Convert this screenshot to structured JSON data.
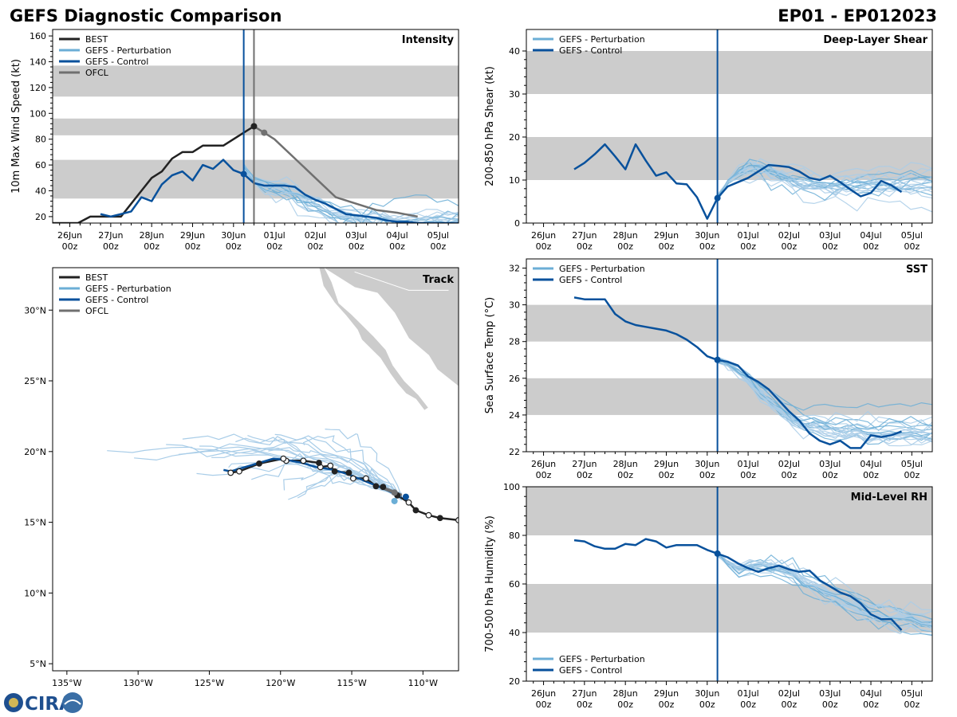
{
  "header": {
    "title": "GEFS Diagnostic Comparison",
    "storm_id": "EP01 - EP012023"
  },
  "logo": {
    "text": "CIRA"
  },
  "colors": {
    "best": "#222222",
    "perturbation": "#6baed6",
    "perturbation_light": "#a9cde8",
    "control": "#08519c",
    "ofcl": "#707070",
    "band": "#cccccc",
    "land": "#cccccc"
  },
  "time_axis": {
    "ticks": [
      {
        "t": 0,
        "date": "26Jun",
        "hour": "00z"
      },
      {
        "t": 1,
        "date": "27Jun",
        "hour": "00z"
      },
      {
        "t": 2,
        "date": "28Jun",
        "hour": "00z"
      },
      {
        "t": 3,
        "date": "29Jun",
        "hour": "00z"
      },
      {
        "t": 4,
        "date": "30Jun",
        "hour": "00z"
      },
      {
        "t": 5,
        "date": "01Jul",
        "hour": "00z"
      },
      {
        "t": 6,
        "date": "02Jul",
        "hour": "00z"
      },
      {
        "t": 7,
        "date": "03Jul",
        "hour": "00z"
      },
      {
        "t": 8,
        "date": "04Jul",
        "hour": "00z"
      },
      {
        "t": 9,
        "date": "05Jul",
        "hour": "00z"
      }
    ],
    "range": [
      -0.42,
      9.5
    ],
    "init_time": 4.25,
    "ofcl_init_time": 4.5
  },
  "chart_data": [
    {
      "id": "intensity",
      "type": "line",
      "title": "Intensity",
      "ylabel": "10m Max Wind Speed (kt)",
      "ylim": [
        15,
        165
      ],
      "yticks": [
        20,
        40,
        60,
        80,
        100,
        120,
        140,
        160
      ],
      "bands": [
        [
          34,
          64
        ],
        [
          83,
          96
        ],
        [
          113,
          137
        ]
      ],
      "legend": [
        "BEST",
        "GEFS - Perturbation",
        "GEFS - Control",
        "OFCL"
      ],
      "series": [
        {
          "name": "BEST",
          "t": [
            -0.42,
            0.2,
            0.5,
            0.75,
            1.0,
            1.25,
            1.5,
            1.75,
            2.0,
            2.25,
            2.5,
            2.75,
            3.0,
            3.25,
            3.5,
            3.75,
            4.0,
            4.25,
            4.5
          ],
          "values": [
            15,
            15,
            20,
            20,
            20,
            20,
            30,
            40,
            50,
            55,
            65,
            70,
            70,
            75,
            75,
            75,
            80,
            85,
            90
          ]
        },
        {
          "name": "GEFS - Control",
          "t": [
            0.75,
            1.0,
            1.25,
            1.5,
            1.75,
            2.0,
            2.25,
            2.5,
            2.75,
            3.0,
            3.25,
            3.5,
            3.75,
            4.0,
            4.25,
            4.5,
            4.75,
            5.0,
            5.25,
            5.5,
            5.75,
            6.0,
            6.25,
            6.5,
            6.75,
            7.0,
            7.25,
            7.5,
            7.75,
            8.0,
            8.25,
            8.5,
            8.75,
            9.0,
            9.5
          ],
          "values": [
            22,
            20,
            22,
            24,
            35,
            32,
            45,
            52,
            55,
            48,
            60,
            57,
            64,
            56,
            53,
            46,
            44,
            44,
            44,
            43,
            37,
            33,
            30,
            26,
            22,
            21,
            20,
            19,
            17,
            16,
            16,
            15,
            15,
            15,
            15
          ]
        },
        {
          "name": "OFCL",
          "t": [
            4.5,
            4.75,
            5.0,
            5.5,
            6.0,
            6.5,
            7.0,
            7.5,
            8.0,
            8.5
          ],
          "values": [
            90,
            85,
            80,
            65,
            50,
            35,
            30,
            25,
            23,
            20
          ]
        }
      ],
      "perturbation_base": [
        58,
        48,
        44,
        43,
        42,
        38,
        33,
        30,
        25,
        22,
        20,
        19,
        18,
        17,
        16,
        16,
        16,
        16,
        16,
        16,
        16
      ]
    },
    {
      "id": "shear",
      "type": "line",
      "title": "Deep-Layer Shear",
      "ylabel": "200-850 hPa Shear (kt)",
      "ylim": [
        0,
        45
      ],
      "yticks": [
        0,
        10,
        20,
        30,
        40
      ],
      "bands": [
        [
          10,
          20
        ],
        [
          30,
          40
        ]
      ],
      "legend": [
        "GEFS - Perturbation",
        "GEFS - Control"
      ],
      "series": [
        {
          "name": "GEFS - Control",
          "t": [
            0.75,
            1.0,
            1.25,
            1.5,
            1.75,
            2.0,
            2.25,
            2.5,
            2.75,
            3.0,
            3.25,
            3.5,
            3.75,
            4.0,
            4.25,
            4.5,
            4.75,
            5.0,
            5.25,
            5.5,
            5.75,
            6.0,
            6.25,
            6.5,
            6.75,
            7.0,
            7.25,
            7.5,
            7.75,
            8.0,
            8.25,
            8.5,
            8.75
          ],
          "values": [
            12.5,
            14,
            16,
            18.3,
            15.5,
            12.5,
            18.3,
            14.5,
            11,
            11.8,
            9.2,
            9,
            6,
            1,
            5.8,
            8.5,
            9.5,
            10.5,
            12,
            13.5,
            13.3,
            13,
            12,
            10.5,
            10,
            11,
            9.5,
            7.8,
            6.2,
            7,
            9.8,
            8.8,
            7.2
          ]
        }
      ],
      "perturbation_base": [
        5.8,
        10,
        12,
        13,
        13,
        12,
        11,
        10,
        9.5,
        9,
        8.5,
        8.5,
        9,
        9,
        9,
        9,
        9,
        9,
        9,
        9,
        9
      ]
    },
    {
      "id": "sst",
      "type": "line",
      "title": "SST",
      "ylabel": "Sea Surface Temp (°C)",
      "ylim": [
        22,
        32.5
      ],
      "yticks": [
        22,
        24,
        26,
        28,
        30,
        32
      ],
      "bands": [
        [
          24,
          26
        ],
        [
          28,
          30
        ]
      ],
      "legend": [
        "GEFS - Perturbation",
        "GEFS - Control"
      ],
      "series": [
        {
          "name": "GEFS - Control",
          "t": [
            0.75,
            1.0,
            1.25,
            1.5,
            1.75,
            2.0,
            2.25,
            2.5,
            2.75,
            3.0,
            3.25,
            3.5,
            3.75,
            4.0,
            4.25,
            4.5,
            4.75,
            5.0,
            5.25,
            5.5,
            5.75,
            6.0,
            6.25,
            6.5,
            6.75,
            7.0,
            7.25,
            7.5,
            7.75,
            8.0,
            8.25,
            8.5,
            8.75
          ],
          "values": [
            30.4,
            30.3,
            30.3,
            30.3,
            29.5,
            29.1,
            28.9,
            28.8,
            28.7,
            28.6,
            28.4,
            28.1,
            27.7,
            27.2,
            27.0,
            26.9,
            26.7,
            26.1,
            25.8,
            25.4,
            24.8,
            24.2,
            23.7,
            23.0,
            22.6,
            22.4,
            22.6,
            22.2,
            22.2,
            22.9,
            22.8,
            22.9,
            23.1
          ]
        }
      ],
      "perturbation_base": [
        27.0,
        26.7,
        26.3,
        25.8,
        25.2,
        24.7,
        24.2,
        23.8,
        23.5,
        23.4,
        23.3,
        23.2,
        23.1,
        23.1,
        23.0,
        23.0,
        23.0,
        23.0,
        23.0,
        23.0,
        23.0
      ]
    },
    {
      "id": "rh",
      "type": "line",
      "title": "Mid-Level RH",
      "ylabel": "700-500 hPa Humidity (%)",
      "ylim": [
        20,
        100
      ],
      "yticks": [
        20,
        40,
        60,
        80,
        100
      ],
      "bands": [
        [
          40,
          60
        ],
        [
          80,
          100
        ]
      ],
      "legend": [
        "GEFS - Perturbation",
        "GEFS - Control"
      ],
      "series": [
        {
          "name": "GEFS - Control",
          "t": [
            0.75,
            1.0,
            1.25,
            1.5,
            1.75,
            2.0,
            2.25,
            2.5,
            2.75,
            3.0,
            3.25,
            3.5,
            3.75,
            4.0,
            4.25,
            4.5,
            4.75,
            5.0,
            5.25,
            5.5,
            5.75,
            6.0,
            6.25,
            6.5,
            6.75,
            7.0,
            7.25,
            7.5,
            7.75,
            8.0,
            8.25,
            8.5,
            8.75
          ],
          "values": [
            78,
            77.5,
            75.5,
            74.5,
            74.5,
            76.5,
            76,
            78.5,
            77.5,
            75,
            76,
            76,
            76,
            74,
            72.5,
            71,
            68.5,
            66.5,
            65,
            66.5,
            67.5,
            66,
            65,
            65.5,
            61.5,
            59,
            56.5,
            55,
            52,
            47.5,
            45.5,
            45.5,
            41
          ]
        }
      ],
      "perturbation_base": [
        72.5,
        68.5,
        66,
        67,
        68,
        67,
        66,
        64,
        61,
        59,
        57,
        55,
        53,
        51,
        49,
        48,
        47,
        46,
        45,
        44,
        43
      ]
    },
    {
      "id": "track",
      "type": "scatter",
      "title": "Track",
      "xlim": [
        -136,
        -107.5
      ],
      "ylim": [
        4.5,
        33
      ],
      "xticks": [
        {
          "v": -135,
          "label": "135°W"
        },
        {
          "v": -130,
          "label": "130°W"
        },
        {
          "v": -125,
          "label": "125°W"
        },
        {
          "v": -120,
          "label": "120°W"
        },
        {
          "v": -115,
          "label": "115°W"
        },
        {
          "v": -110,
          "label": "110°W"
        }
      ],
      "yticks": [
        {
          "v": 5,
          "label": "5°N"
        },
        {
          "v": 10,
          "label": "10°N"
        },
        {
          "v": 15,
          "label": "15°N"
        },
        {
          "v": 20,
          "label": "20°N"
        },
        {
          "v": 25,
          "label": "25°N"
        },
        {
          "v": 30,
          "label": "30°N"
        }
      ],
      "legend": [
        "BEST",
        "GEFS - Perturbation",
        "GEFS - Control",
        "OFCL"
      ],
      "best_track": {
        "lon": [
          -107.5,
          -108.8,
          -109.6,
          -110.5,
          -111.0,
          -111.8,
          -112.8,
          -113.3,
          -114.0,
          -114.9,
          -115.2,
          -116.2,
          -116.5,
          -117.2,
          -117.3,
          -118.4,
          -119.6,
          -119.8,
          -121.5,
          -122.9,
          -123.5
        ],
        "lat": [
          15.15,
          15.3,
          15.5,
          15.85,
          16.4,
          16.9,
          17.5,
          17.55,
          18.1,
          18.1,
          18.5,
          18.6,
          19.0,
          18.9,
          19.2,
          19.35,
          19.35,
          19.5,
          19.15,
          18.6,
          18.5
        ],
        "marker": [
          "hollow",
          "filled",
          "hollow",
          "filled",
          "hollow",
          "filled",
          "filled",
          "filled",
          "hollow",
          "hollow",
          "filled",
          "filled",
          "hollow",
          "hollow",
          "filled",
          "hollow",
          "hollow",
          "hollow",
          "filled",
          "hollow",
          "hollow"
        ]
      },
      "control_track": {
        "lon": [
          -111.5,
          -112.6,
          -113.8,
          -115.0,
          -116.2,
          -117.5,
          -118.5,
          -119.5,
          -120.5,
          -121.5,
          -122.5,
          -123.5,
          -124.0
        ],
        "lat": [
          16.8,
          17.3,
          17.8,
          18.3,
          18.7,
          18.9,
          19.2,
          19.4,
          19.5,
          19.2,
          18.9,
          18.6,
          18.7
        ]
      },
      "perturbation_ends": [
        [
          -132.2,
          20.0
        ],
        [
          -126.5,
          21.0
        ],
        [
          -127.5,
          19.8
        ],
        [
          -124.5,
          19.6
        ],
        [
          -123.0,
          20.6
        ],
        [
          -121.0,
          20.0
        ],
        [
          -128.0,
          20.3
        ],
        [
          -125.5,
          18.2
        ],
        [
          -120.0,
          17.5
        ],
        [
          -119.5,
          16.5
        ],
        [
          -117.8,
          17.5
        ],
        [
          -118.5,
          20.7
        ],
        [
          -116.5,
          21.5
        ],
        [
          -121.8,
          18.1
        ],
        [
          -126.0,
          20.2
        ],
        [
          -122.5,
          20.9
        ],
        [
          -118.8,
          16.8
        ],
        [
          -124.0,
          19.0
        ],
        [
          -130.0,
          19.5
        ],
        [
          -120.5,
          21.0
        ]
      ],
      "ofcl_track": {
        "lon": [
          -111.5,
          -112.2,
          -113.0
        ],
        "lat": [
          16.9,
          17.2,
          17.5
        ]
      }
    }
  ]
}
